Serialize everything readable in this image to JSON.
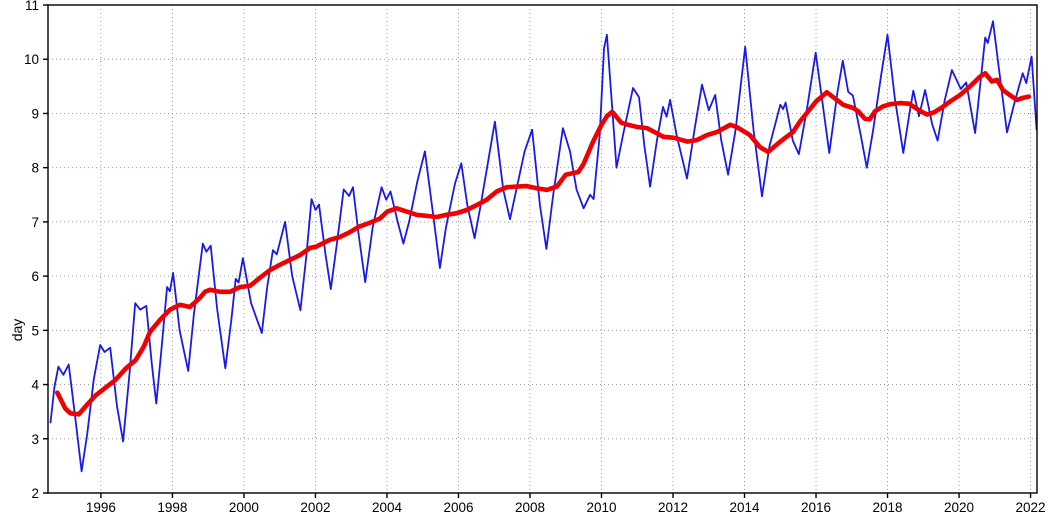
{
  "chart_data": {
    "type": "line",
    "title": "",
    "xlabel": "",
    "ylabel": "day",
    "xlim": [
      1994.52,
      2022.18
    ],
    "ylim": [
      2,
      11
    ],
    "x_ticks": [
      1996,
      1998,
      2000,
      2002,
      2004,
      2006,
      2008,
      2010,
      2012,
      2014,
      2016,
      2018,
      2020,
      2022
    ],
    "y_ticks": [
      2,
      3,
      4,
      5,
      6,
      7,
      8,
      9,
      10,
      11
    ],
    "grid": "dotted",
    "grid_color": "#9a9a9a",
    "axis_color": "#000000",
    "legend": "none",
    "series": [
      {
        "name": "monthly-series",
        "color": "#1a1ae8",
        "width": 1.8,
        "points": [
          [
            1994.59,
            3.3
          ],
          [
            1994.7,
            3.95
          ],
          [
            1994.81,
            4.33
          ],
          [
            1994.95,
            4.18
          ],
          [
            1995.1,
            4.37
          ],
          [
            1995.28,
            3.4
          ],
          [
            1995.46,
            2.4
          ],
          [
            1995.62,
            3.1
          ],
          [
            1995.8,
            4.1
          ],
          [
            1995.98,
            4.73
          ],
          [
            1996.1,
            4.6
          ],
          [
            1996.26,
            4.68
          ],
          [
            1996.45,
            3.6
          ],
          [
            1996.62,
            2.95
          ],
          [
            1996.8,
            4.2
          ],
          [
            1996.96,
            5.5
          ],
          [
            1997.1,
            5.38
          ],
          [
            1997.27,
            5.45
          ],
          [
            1997.42,
            4.4
          ],
          [
            1997.55,
            3.65
          ],
          [
            1997.7,
            4.7
          ],
          [
            1997.85,
            5.8
          ],
          [
            1997.93,
            5.72
          ],
          [
            1998.02,
            6.06
          ],
          [
            1998.2,
            5.0
          ],
          [
            1998.44,
            4.25
          ],
          [
            1998.6,
            5.3
          ],
          [
            1998.85,
            6.6
          ],
          [
            1998.95,
            6.45
          ],
          [
            1999.07,
            6.56
          ],
          [
            1999.25,
            5.4
          ],
          [
            1999.48,
            4.3
          ],
          [
            1999.65,
            5.2
          ],
          [
            1999.77,
            5.95
          ],
          [
            1999.85,
            5.88
          ],
          [
            1999.97,
            6.33
          ],
          [
            2000.2,
            5.5
          ],
          [
            2000.5,
            4.95
          ],
          [
            2000.65,
            5.8
          ],
          [
            2000.81,
            6.48
          ],
          [
            2000.92,
            6.4
          ],
          [
            2001.15,
            7.0
          ],
          [
            2001.35,
            6.0
          ],
          [
            2001.58,
            5.37
          ],
          [
            2001.75,
            6.4
          ],
          [
            2001.89,
            7.42
          ],
          [
            2002.0,
            7.22
          ],
          [
            2002.1,
            7.32
          ],
          [
            2002.28,
            6.4
          ],
          [
            2002.43,
            5.76
          ],
          [
            2002.6,
            6.6
          ],
          [
            2002.79,
            7.6
          ],
          [
            2002.94,
            7.48
          ],
          [
            2003.05,
            7.64
          ],
          [
            2003.2,
            6.8
          ],
          [
            2003.39,
            5.89
          ],
          [
            2003.6,
            6.9
          ],
          [
            2003.85,
            7.64
          ],
          [
            2003.98,
            7.41
          ],
          [
            2004.1,
            7.56
          ],
          [
            2004.3,
            7.0
          ],
          [
            2004.46,
            6.6
          ],
          [
            2004.62,
            7.0
          ],
          [
            2004.85,
            7.75
          ],
          [
            2005.06,
            8.3
          ],
          [
            2005.3,
            7.1
          ],
          [
            2005.48,
            6.15
          ],
          [
            2005.65,
            6.9
          ],
          [
            2005.9,
            7.7
          ],
          [
            2006.08,
            8.08
          ],
          [
            2006.25,
            7.3
          ],
          [
            2006.45,
            6.7
          ],
          [
            2006.62,
            7.3
          ],
          [
            2006.85,
            8.2
          ],
          [
            2007.02,
            8.85
          ],
          [
            2007.25,
            7.6
          ],
          [
            2007.44,
            7.05
          ],
          [
            2007.62,
            7.6
          ],
          [
            2007.85,
            8.3
          ],
          [
            2008.06,
            8.7
          ],
          [
            2008.28,
            7.3
          ],
          [
            2008.46,
            6.5
          ],
          [
            2008.65,
            7.5
          ],
          [
            2008.92,
            8.73
          ],
          [
            2009.12,
            8.3
          ],
          [
            2009.3,
            7.6
          ],
          [
            2009.5,
            7.25
          ],
          [
            2009.68,
            7.5
          ],
          [
            2009.78,
            7.42
          ],
          [
            2009.95,
            8.6
          ],
          [
            2010.07,
            10.2
          ],
          [
            2010.15,
            10.45
          ],
          [
            2010.3,
            9.1
          ],
          [
            2010.42,
            8.0
          ],
          [
            2010.6,
            8.6
          ],
          [
            2010.88,
            9.47
          ],
          [
            2011.05,
            9.3
          ],
          [
            2011.2,
            8.4
          ],
          [
            2011.36,
            7.65
          ],
          [
            2011.55,
            8.5
          ],
          [
            2011.72,
            9.12
          ],
          [
            2011.82,
            8.94
          ],
          [
            2011.92,
            9.25
          ],
          [
            2012.1,
            8.6
          ],
          [
            2012.39,
            7.8
          ],
          [
            2012.6,
            8.7
          ],
          [
            2012.81,
            9.53
          ],
          [
            2013.0,
            9.06
          ],
          [
            2013.18,
            9.34
          ],
          [
            2013.35,
            8.5
          ],
          [
            2013.54,
            7.87
          ],
          [
            2013.75,
            8.7
          ],
          [
            2014.02,
            10.23
          ],
          [
            2014.25,
            8.7
          ],
          [
            2014.49,
            7.47
          ],
          [
            2014.7,
            8.4
          ],
          [
            2015.0,
            9.16
          ],
          [
            2015.08,
            9.08
          ],
          [
            2015.15,
            9.2
          ],
          [
            2015.35,
            8.5
          ],
          [
            2015.52,
            8.25
          ],
          [
            2015.75,
            9.1
          ],
          [
            2015.99,
            10.12
          ],
          [
            2016.2,
            9.1
          ],
          [
            2016.37,
            8.27
          ],
          [
            2016.6,
            9.4
          ],
          [
            2016.75,
            9.97
          ],
          [
            2016.9,
            9.4
          ],
          [
            2017.03,
            9.33
          ],
          [
            2017.25,
            8.6
          ],
          [
            2017.42,
            8.0
          ],
          [
            2017.6,
            8.7
          ],
          [
            2017.82,
            9.7
          ],
          [
            2018.0,
            10.45
          ],
          [
            2018.2,
            9.3
          ],
          [
            2018.44,
            8.27
          ],
          [
            2018.6,
            8.95
          ],
          [
            2018.72,
            9.42
          ],
          [
            2018.88,
            8.95
          ],
          [
            2019.05,
            9.43
          ],
          [
            2019.25,
            8.8
          ],
          [
            2019.4,
            8.5
          ],
          [
            2019.6,
            9.25
          ],
          [
            2019.8,
            9.8
          ],
          [
            2020.05,
            9.45
          ],
          [
            2020.2,
            9.57
          ],
          [
            2020.45,
            8.64
          ],
          [
            2020.62,
            9.7
          ],
          [
            2020.73,
            10.4
          ],
          [
            2020.8,
            10.3
          ],
          [
            2020.95,
            10.7
          ],
          [
            2021.1,
            9.9
          ],
          [
            2021.34,
            8.65
          ],
          [
            2021.55,
            9.2
          ],
          [
            2021.78,
            9.74
          ],
          [
            2021.88,
            9.56
          ],
          [
            2022.03,
            10.05
          ],
          [
            2022.17,
            8.7
          ]
        ]
      },
      {
        "name": "running-mean-series",
        "color": "#ee0000",
        "width": 4.6,
        "points": [
          [
            1994.78,
            3.85
          ],
          [
            1995.0,
            3.56
          ],
          [
            1995.15,
            3.47
          ],
          [
            1995.38,
            3.45
          ],
          [
            1995.6,
            3.62
          ],
          [
            1995.85,
            3.8
          ],
          [
            1996.1,
            3.93
          ],
          [
            1996.4,
            4.08
          ],
          [
            1996.7,
            4.3
          ],
          [
            1996.97,
            4.45
          ],
          [
            1997.2,
            4.7
          ],
          [
            1997.37,
            4.97
          ],
          [
            1997.65,
            5.19
          ],
          [
            1997.93,
            5.38
          ],
          [
            1998.21,
            5.47
          ],
          [
            1998.49,
            5.43
          ],
          [
            1998.77,
            5.6
          ],
          [
            1998.91,
            5.71
          ],
          [
            1999.05,
            5.75
          ],
          [
            1999.33,
            5.71
          ],
          [
            1999.61,
            5.71
          ],
          [
            1999.89,
            5.8
          ],
          [
            2000.17,
            5.82
          ],
          [
            2000.45,
            5.97
          ],
          [
            2000.73,
            6.11
          ],
          [
            2001.01,
            6.21
          ],
          [
            2001.29,
            6.3
          ],
          [
            2001.57,
            6.39
          ],
          [
            2001.85,
            6.52
          ],
          [
            2002.01,
            6.54
          ],
          [
            2002.4,
            6.67
          ],
          [
            2002.68,
            6.72
          ],
          [
            2002.96,
            6.81
          ],
          [
            2003.21,
            6.91
          ],
          [
            2003.5,
            6.98
          ],
          [
            2003.8,
            7.06
          ],
          [
            2004.01,
            7.19
          ],
          [
            2004.27,
            7.25
          ],
          [
            2004.55,
            7.19
          ],
          [
            2004.83,
            7.13
          ],
          [
            2005.11,
            7.11
          ],
          [
            2005.39,
            7.09
          ],
          [
            2005.67,
            7.13
          ],
          [
            2005.95,
            7.16
          ],
          [
            2006.23,
            7.22
          ],
          [
            2006.51,
            7.31
          ],
          [
            2006.79,
            7.41
          ],
          [
            2007.07,
            7.56
          ],
          [
            2007.35,
            7.64
          ],
          [
            2007.63,
            7.65
          ],
          [
            2007.91,
            7.66
          ],
          [
            2008.19,
            7.62
          ],
          [
            2008.47,
            7.59
          ],
          [
            2008.75,
            7.65
          ],
          [
            2009.0,
            7.87
          ],
          [
            2009.2,
            7.9
          ],
          [
            2009.35,
            7.92
          ],
          [
            2009.5,
            8.07
          ],
          [
            2009.75,
            8.46
          ],
          [
            2009.9,
            8.66
          ],
          [
            2010.0,
            8.79
          ],
          [
            2010.15,
            8.95
          ],
          [
            2010.3,
            9.03
          ],
          [
            2010.55,
            8.83
          ],
          [
            2010.74,
            8.79
          ],
          [
            2011.0,
            8.75
          ],
          [
            2011.27,
            8.73
          ],
          [
            2011.5,
            8.65
          ],
          [
            2011.73,
            8.57
          ],
          [
            2012.03,
            8.55
          ],
          [
            2012.4,
            8.48
          ],
          [
            2012.67,
            8.51
          ],
          [
            2012.95,
            8.6
          ],
          [
            2013.24,
            8.66
          ],
          [
            2013.6,
            8.79
          ],
          [
            2013.78,
            8.75
          ],
          [
            2014.15,
            8.6
          ],
          [
            2014.43,
            8.38
          ],
          [
            2014.66,
            8.29
          ],
          [
            2015.0,
            8.48
          ],
          [
            2015.36,
            8.66
          ],
          [
            2015.55,
            8.85
          ],
          [
            2015.78,
            9.04
          ],
          [
            2016.0,
            9.22
          ],
          [
            2016.3,
            9.39
          ],
          [
            2016.44,
            9.32
          ],
          [
            2016.76,
            9.16
          ],
          [
            2017.04,
            9.1
          ],
          [
            2017.18,
            9.04
          ],
          [
            2017.37,
            8.9
          ],
          [
            2017.5,
            8.89
          ],
          [
            2017.65,
            9.04
          ],
          [
            2017.87,
            9.13
          ],
          [
            2018.07,
            9.17
          ],
          [
            2018.35,
            9.19
          ],
          [
            2018.6,
            9.18
          ],
          [
            2018.9,
            9.05
          ],
          [
            2019.1,
            8.98
          ],
          [
            2019.3,
            9.02
          ],
          [
            2019.5,
            9.1
          ],
          [
            2019.75,
            9.22
          ],
          [
            2020.03,
            9.34
          ],
          [
            2020.31,
            9.5
          ],
          [
            2020.59,
            9.68
          ],
          [
            2020.73,
            9.74
          ],
          [
            2020.92,
            9.59
          ],
          [
            2021.06,
            9.62
          ],
          [
            2021.23,
            9.43
          ],
          [
            2021.48,
            9.31
          ],
          [
            2021.62,
            9.25
          ],
          [
            2021.8,
            9.29
          ],
          [
            2021.95,
            9.31
          ]
        ]
      }
    ]
  }
}
